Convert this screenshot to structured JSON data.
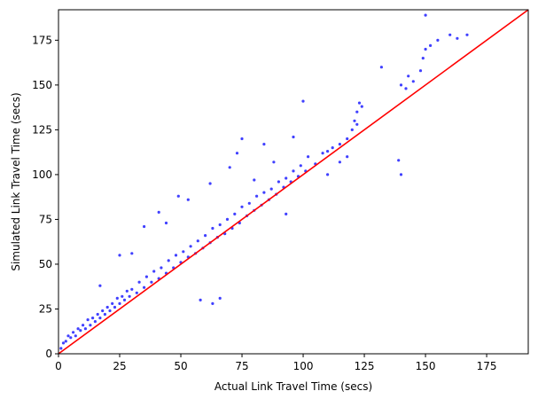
{
  "chart_data": {
    "type": "scatter",
    "title": "",
    "xlabel": "Actual Link Travel Time (secs)",
    "ylabel": "Simulated Link Travel Time (secs)",
    "xlim": [
      0,
      192
    ],
    "ylim": [
      0,
      192
    ],
    "xticks": [
      0,
      25,
      50,
      75,
      100,
      125,
      150,
      175
    ],
    "yticks": [
      0,
      25,
      50,
      75,
      100,
      125,
      150,
      175
    ],
    "grid": false,
    "legend": "none",
    "colors": {
      "points": "#0000ff",
      "reference_line": "#ff0000",
      "axes": "#000000"
    },
    "series": [
      {
        "type": "scatter",
        "color": "#0000ff",
        "points": [
          [
            1,
            3
          ],
          [
            2,
            6
          ],
          [
            3,
            7
          ],
          [
            4,
            10
          ],
          [
            5,
            9
          ],
          [
            6,
            12
          ],
          [
            7,
            10
          ],
          [
            8,
            14
          ],
          [
            9,
            13
          ],
          [
            10,
            16
          ],
          [
            11,
            14
          ],
          [
            12,
            19
          ],
          [
            13,
            16
          ],
          [
            14,
            20
          ],
          [
            15,
            18
          ],
          [
            16,
            22
          ],
          [
            17,
            20
          ],
          [
            18,
            24
          ],
          [
            19,
            22
          ],
          [
            20,
            26
          ],
          [
            21,
            24
          ],
          [
            22,
            28
          ],
          [
            23,
            26
          ],
          [
            24,
            31
          ],
          [
            25,
            28
          ],
          [
            26,
            32
          ],
          [
            27,
            30
          ],
          [
            28,
            35
          ],
          [
            29,
            32
          ],
          [
            30,
            36
          ],
          [
            32,
            34
          ],
          [
            33,
            40
          ],
          [
            35,
            37
          ],
          [
            36,
            43
          ],
          [
            38,
            40
          ],
          [
            39,
            46
          ],
          [
            41,
            42
          ],
          [
            42,
            48
          ],
          [
            44,
            45
          ],
          [
            45,
            52
          ],
          [
            47,
            48
          ],
          [
            48,
            55
          ],
          [
            50,
            51
          ],
          [
            51,
            57
          ],
          [
            53,
            54
          ],
          [
            54,
            60
          ],
          [
            56,
            56
          ],
          [
            57,
            63
          ],
          [
            59,
            59
          ],
          [
            60,
            66
          ],
          [
            62,
            62
          ],
          [
            63,
            70
          ],
          [
            65,
            65
          ],
          [
            66,
            72
          ],
          [
            68,
            67
          ],
          [
            69,
            75
          ],
          [
            71,
            70
          ],
          [
            72,
            78
          ],
          [
            74,
            73
          ],
          [
            75,
            82
          ],
          [
            77,
            77
          ],
          [
            78,
            84
          ],
          [
            80,
            80
          ],
          [
            81,
            88
          ],
          [
            83,
            83
          ],
          [
            84,
            90
          ],
          [
            86,
            86
          ],
          [
            87,
            92
          ],
          [
            89,
            89
          ],
          [
            90,
            96
          ],
          [
            92,
            93
          ],
          [
            93,
            98
          ],
          [
            95,
            96
          ],
          [
            96,
            102
          ],
          [
            98,
            99
          ],
          [
            99,
            105
          ],
          [
            101,
            102
          ],
          [
            102,
            110
          ],
          [
            105,
            106
          ],
          [
            108,
            112
          ],
          [
            110,
            113
          ],
          [
            112,
            115
          ],
          [
            115,
            117
          ],
          [
            118,
            120
          ],
          [
            120,
            125
          ],
          [
            121,
            130
          ],
          [
            122,
            135
          ],
          [
            123,
            140
          ],
          [
            124,
            138
          ],
          [
            122,
            128
          ],
          [
            118,
            110
          ],
          [
            140,
            150
          ],
          [
            142,
            148
          ],
          [
            143,
            155
          ],
          [
            145,
            152
          ],
          [
            148,
            158
          ],
          [
            149,
            165
          ],
          [
            150,
            170
          ],
          [
            152,
            172
          ],
          [
            155,
            175
          ],
          [
            160,
            178
          ],
          [
            163,
            176
          ],
          [
            167,
            178
          ],
          [
            150,
            189
          ],
          [
            100,
            141
          ],
          [
            96,
            121
          ],
          [
            88,
            107
          ],
          [
            75,
            120
          ],
          [
            73,
            112
          ],
          [
            53,
            86
          ],
          [
            49,
            88
          ],
          [
            41,
            79
          ],
          [
            35,
            71
          ],
          [
            30,
            56
          ],
          [
            84,
            117
          ],
          [
            70,
            104
          ],
          [
            58,
            30
          ],
          [
            63,
            28
          ],
          [
            66,
            31
          ],
          [
            139,
            108
          ],
          [
            140,
            100
          ],
          [
            93,
            78
          ],
          [
            110,
            100
          ],
          [
            80,
            97
          ],
          [
            25,
            55
          ],
          [
            17,
            38
          ],
          [
            44,
            73
          ],
          [
            62,
            95
          ],
          [
            115,
            107
          ],
          [
            132,
            160
          ]
        ]
      },
      {
        "type": "line",
        "name": "",
        "color": "#ff0000",
        "points": [
          [
            0,
            0
          ],
          [
            192,
            192
          ]
        ]
      }
    ]
  }
}
